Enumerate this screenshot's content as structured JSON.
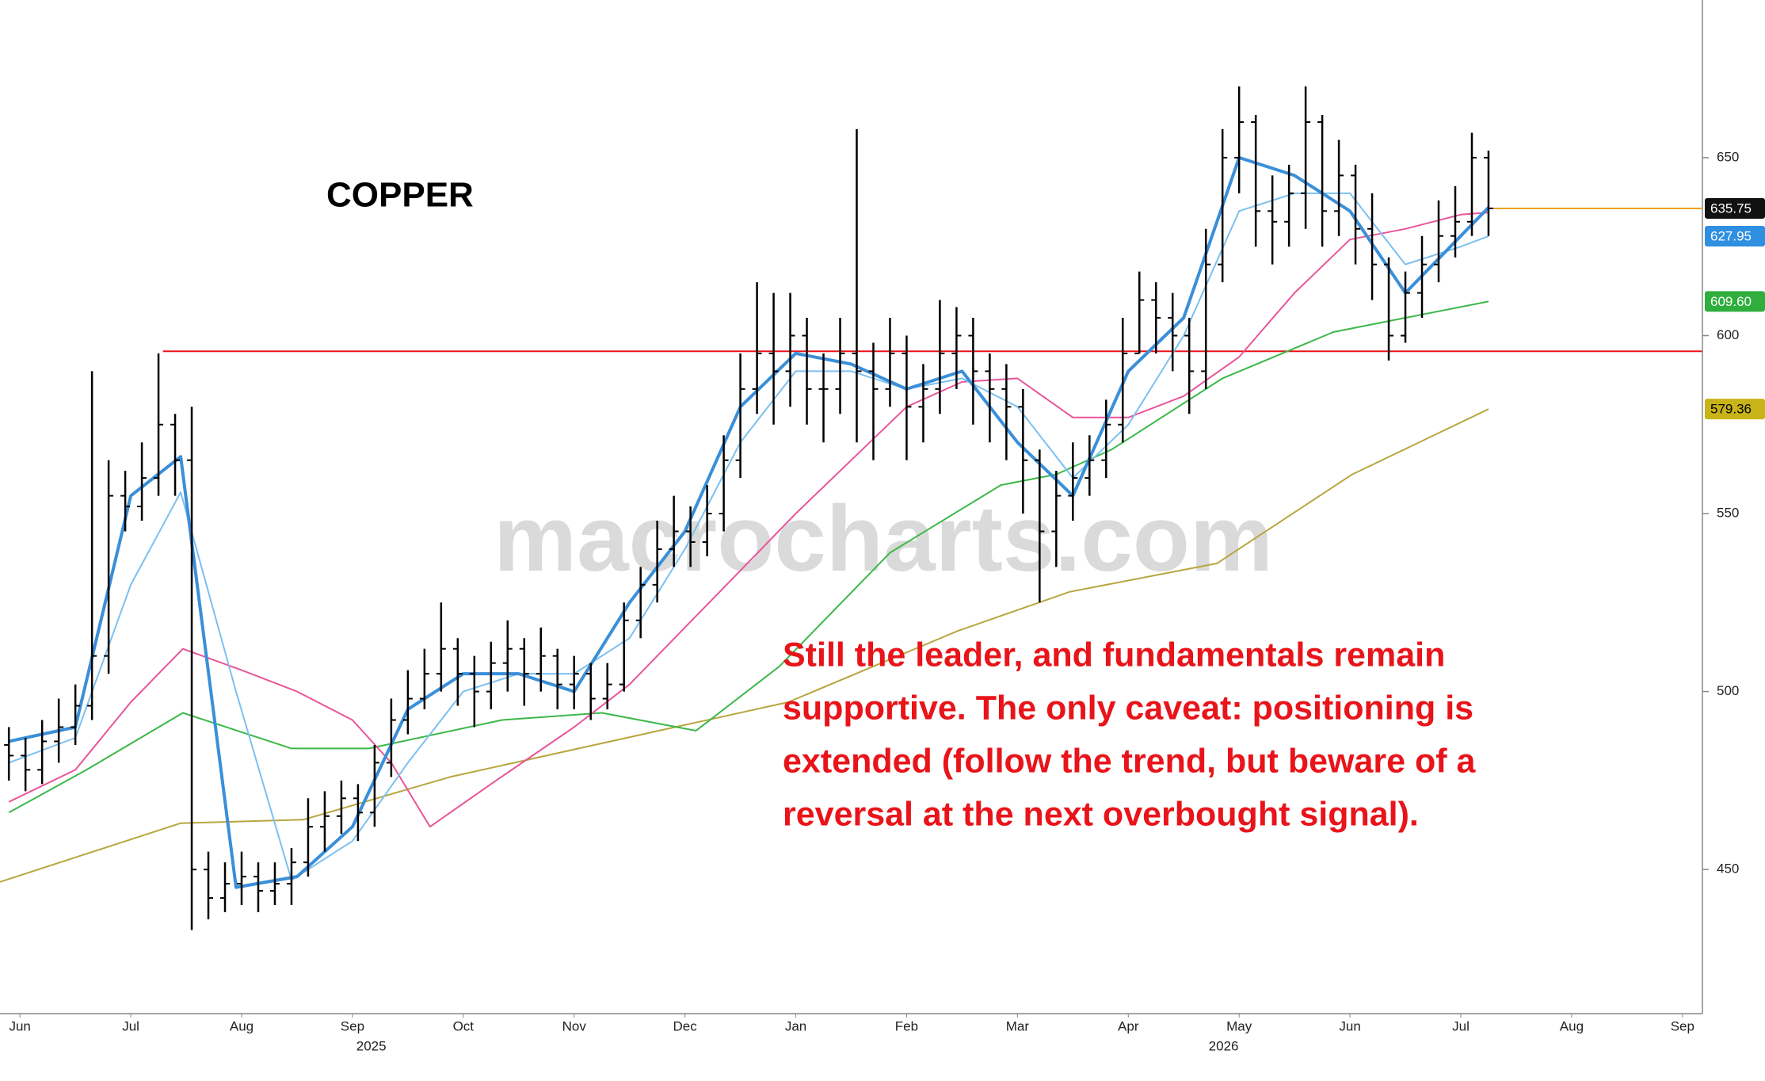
{
  "chart_data": {
    "type": "ohlc",
    "title": "COPPER",
    "watermark": "macrocharts.com",
    "annotation": [
      "Still the leader, and fundamentals remain",
      "supportive. The only caveat: positioning is",
      "extended (follow the trend, but beware of a",
      "reversal at the next overbought signal)."
    ],
    "xlim": [
      0.32,
      15.68
    ],
    "xticks": [
      {
        "value": 0.5,
        "label": "Jun"
      },
      {
        "value": 1.5,
        "label": "Jul"
      },
      {
        "value": 2.5,
        "label": "Aug"
      },
      {
        "value": 3.5,
        "label": "Sep"
      },
      {
        "value": 4.5,
        "label": "Oct"
      },
      {
        "value": 5.5,
        "label": "Nov"
      },
      {
        "value": 6.5,
        "label": "Dec"
      },
      {
        "value": 7.5,
        "label": "Jan"
      },
      {
        "value": 8.5,
        "label": "Feb"
      },
      {
        "value": 9.5,
        "label": "Mar"
      },
      {
        "value": 10.5,
        "label": "Apr"
      },
      {
        "value": 11.5,
        "label": "May"
      },
      {
        "value": 12.5,
        "label": "Jun"
      },
      {
        "value": 13.5,
        "label": "Jul"
      },
      {
        "value": 14.5,
        "label": "Aug"
      },
      {
        "value": 15.5,
        "label": "Sep"
      }
    ],
    "year_labels": [
      {
        "value": 3.67,
        "label": "2025"
      },
      {
        "value": 11.36,
        "label": "2026"
      }
    ],
    "ylim": [
      409.5,
      694.3
    ],
    "yticks": [
      450,
      500,
      550,
      600,
      650
    ],
    "ohlc": {
      "color": "#000000",
      "x": [
        0.4,
        0.55,
        0.7,
        0.85,
        1,
        1.15,
        1.3,
        1.45,
        1.6,
        1.75,
        1.9,
        2.05,
        2.2,
        2.35,
        2.5,
        2.65,
        2.8,
        2.95,
        3.1,
        3.25,
        3.4,
        3.55,
        3.7,
        3.85,
        4,
        4.15,
        4.3,
        4.45,
        4.6,
        4.75,
        4.9,
        5.05,
        5.2,
        5.35,
        5.5,
        5.65,
        5.8,
        5.95,
        6.1,
        6.25,
        6.4,
        6.55,
        6.7,
        6.85,
        7,
        7.15,
        7.3,
        7.45,
        7.6,
        7.75,
        7.9,
        8.05,
        8.2,
        8.35,
        8.5,
        8.65,
        8.8,
        8.95,
        9.1,
        9.25,
        9.4,
        9.55,
        9.7,
        9.85,
        10,
        10.15,
        10.3,
        10.45,
        10.6,
        10.75,
        10.9,
        11.05,
        11.2,
        11.35,
        11.5,
        11.65,
        11.8,
        11.95,
        12.1,
        12.25,
        12.4,
        12.55,
        12.7,
        12.85,
        13,
        13.15,
        13.3,
        13.45,
        13.6,
        13.75
      ],
      "open": [
        485,
        482,
        478,
        486,
        490,
        496,
        510,
        555,
        552,
        560,
        575,
        565,
        450,
        442,
        446,
        448,
        444,
        446,
        452,
        462,
        465,
        470,
        466,
        480,
        492,
        498,
        505,
        512,
        505,
        500,
        508,
        512,
        505,
        510,
        502,
        505,
        498,
        502,
        520,
        530,
        540,
        545,
        542,
        550,
        565,
        585,
        595,
        590,
        600,
        585,
        585,
        595,
        590,
        585,
        595,
        580,
        585,
        595,
        600,
        590,
        585,
        580,
        565,
        545,
        555,
        560,
        565,
        575,
        595,
        610,
        605,
        600,
        590,
        620,
        650,
        660,
        635,
        632,
        640,
        660,
        635,
        645,
        630,
        620,
        600,
        612,
        620,
        628,
        632,
        650
      ],
      "high": [
        490,
        487,
        492,
        498,
        502,
        590,
        565,
        562,
        570,
        595,
        578,
        580,
        455,
        452,
        455,
        452,
        452,
        456,
        470,
        472,
        475,
        474,
        485,
        498,
        506,
        512,
        525,
        515,
        510,
        514,
        520,
        515,
        518,
        512,
        510,
        508,
        508,
        525,
        535,
        548,
        555,
        552,
        558,
        572,
        595,
        615,
        612,
        612,
        605,
        595,
        605,
        658,
        598,
        605,
        600,
        592,
        610,
        608,
        605,
        595,
        592,
        585,
        568,
        562,
        570,
        572,
        582,
        605,
        618,
        615,
        612,
        605,
        630,
        658,
        670,
        662,
        645,
        648,
        670,
        662,
        655,
        648,
        640,
        622,
        618,
        628,
        638,
        642,
        657,
        652
      ],
      "low": [
        475,
        472,
        474,
        480,
        485,
        492,
        505,
        545,
        548,
        555,
        555,
        433,
        436,
        438,
        440,
        438,
        440,
        440,
        448,
        455,
        460,
        458,
        462,
        476,
        488,
        495,
        500,
        496,
        490,
        495,
        500,
        496,
        500,
        495,
        495,
        492,
        495,
        500,
        515,
        525,
        535,
        535,
        538,
        545,
        560,
        578,
        575,
        580,
        575,
        570,
        578,
        570,
        565,
        580,
        565,
        570,
        578,
        585,
        575,
        570,
        565,
        550,
        525,
        535,
        548,
        555,
        560,
        570,
        595,
        595,
        590,
        578,
        585,
        615,
        640,
        625,
        620,
        625,
        630,
        625,
        628,
        620,
        610,
        593,
        598,
        605,
        615,
        622,
        628,
        628
      ],
      "close": [
        482,
        478,
        486,
        490,
        496,
        510,
        555,
        552,
        560,
        575,
        565,
        450,
        442,
        446,
        448,
        444,
        446,
        452,
        462,
        465,
        470,
        466,
        480,
        492,
        498,
        505,
        512,
        505,
        500,
        508,
        512,
        505,
        510,
        502,
        505,
        498,
        502,
        520,
        530,
        540,
        545,
        542,
        550,
        565,
        585,
        595,
        590,
        600,
        585,
        585,
        595,
        590,
        585,
        595,
        580,
        585,
        595,
        600,
        590,
        585,
        580,
        565,
        545,
        555,
        560,
        565,
        575,
        595,
        610,
        605,
        600,
        590,
        620,
        650,
        660,
        635,
        632,
        640,
        660,
        635,
        645,
        630,
        620,
        600,
        612,
        620,
        628,
        632,
        650,
        635.75
      ],
      "last_price_color": "#f0a020"
    },
    "lines": [
      {
        "color": "#b8a640",
        "width": 2,
        "x": [
          0.32,
          1.95,
          3.06,
          4.38,
          6.41,
          7.43,
          8.96,
          9.97,
          11.3,
          12.52,
          13.75
        ],
        "values": [
          446.5,
          463,
          464,
          476,
          490,
          497,
          517,
          528,
          536,
          561,
          579.36
        ],
        "last_label": "579.36",
        "label_color": "#c8b418",
        "label_text_color": "#000000"
      },
      {
        "color": "#3cb84a",
        "width": 2,
        "x": [
          0.4,
          1.1,
          1.97,
          2.95,
          3.65,
          4.85,
          5.75,
          6.6,
          7.35,
          8.35,
          9.35,
          9.85,
          10.35,
          11.35,
          12.35,
          13,
          13.75
        ],
        "values": [
          466,
          478,
          494,
          484,
          484,
          492,
          494,
          489,
          507,
          539,
          558,
          561,
          568,
          588,
          601,
          605,
          609.6
        ],
        "last_label": "609.60",
        "label_color": "#2fae3e",
        "label_text_color": "#ffffff"
      },
      {
        "color": "#e8559a",
        "width": 2,
        "x": [
          0.4,
          1,
          1.5,
          1.97,
          2.5,
          3,
          3.5,
          3.85,
          4.2,
          4.75,
          5.5,
          6,
          7,
          7.5,
          8,
          8.5,
          9,
          9.5,
          10,
          10.5,
          11,
          11.5,
          12,
          12.5,
          13,
          13.5,
          13.75
        ],
        "values": [
          469,
          478,
          497,
          512,
          506,
          500,
          492,
          480,
          462,
          474,
          490,
          502,
          534,
          550,
          565,
          580,
          587,
          588,
          577,
          577,
          583,
          594,
          612,
          627,
          630,
          634,
          634.6
        ]
      },
      {
        "color": "#7cc0f0",
        "width": 2,
        "x": [
          0.4,
          1,
          1.5,
          1.95,
          2.45,
          2.95,
          3.5,
          4,
          4.5,
          5,
          5.5,
          6,
          6.5,
          7,
          7.5,
          8,
          8.5,
          9,
          9.5,
          10,
          10.5,
          11,
          11.5,
          12,
          12.5,
          13,
          13.5,
          13.75
        ],
        "values": [
          480,
          487,
          530,
          556,
          500,
          447,
          458,
          480,
          500,
          505,
          505,
          515,
          540,
          570,
          590,
          590,
          585,
          588,
          580,
          560,
          575,
          600,
          635,
          640,
          640,
          620,
          625,
          627.95
        ],
        "last_label": "627.95",
        "label_color": "#2f8fe0",
        "label_text_color": "#ffffff"
      },
      {
        "color": "#3a8fd9",
        "width": 4,
        "x": [
          0.4,
          1,
          1.5,
          1.95,
          2.45,
          3,
          3.5,
          4,
          4.5,
          5,
          5.5,
          6,
          6.5,
          7,
          7.5,
          8,
          8.5,
          9,
          9.5,
          10,
          10.5,
          11,
          11.5,
          12,
          12.5,
          13,
          13.5,
          13.75
        ],
        "values": [
          486,
          490,
          555,
          566,
          445,
          448,
          462,
          495,
          505,
          505,
          500,
          525,
          545,
          580,
          595,
          592,
          585,
          590,
          570,
          555,
          590,
          605,
          650,
          645,
          635,
          612,
          628,
          636
        ]
      }
    ],
    "support_line": {
      "value": 595.6,
      "x_start": 1.79,
      "color": "#e8141a"
    },
    "annotation_color": "#e8141a"
  }
}
